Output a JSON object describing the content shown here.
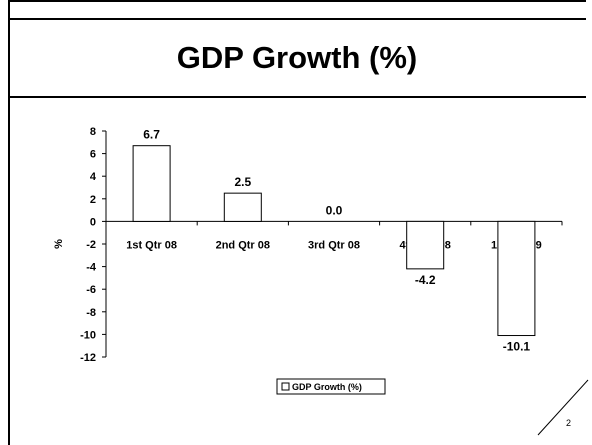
{
  "slide": {
    "title": "GDP Growth (%)",
    "page_number": "2"
  },
  "chart_data": {
    "type": "bar",
    "title": "",
    "xlabel": "",
    "ylabel": "%",
    "categories": [
      "1st Qtr 08",
      "2nd Qtr 08",
      "3rd Qtr 08",
      "4th Qtr 08",
      "1st Qtr 09"
    ],
    "series": [
      {
        "name": "GDP Growth (%)",
        "values": [
          6.7,
          2.5,
          0.0,
          -4.2,
          -10.1
        ]
      }
    ],
    "data_labels": [
      "6.7",
      "2.5",
      "0.0",
      "-4.2",
      "-10.1"
    ],
    "yticks": [
      8,
      6,
      4,
      2,
      0,
      -2,
      -4,
      -6,
      -8,
      -10,
      -12
    ],
    "ylim": [
      -12,
      8
    ],
    "grid": false,
    "legend": "bottom-center",
    "colors": {
      "bar_fill": "#ffffff",
      "bar_stroke": "#000000"
    }
  }
}
